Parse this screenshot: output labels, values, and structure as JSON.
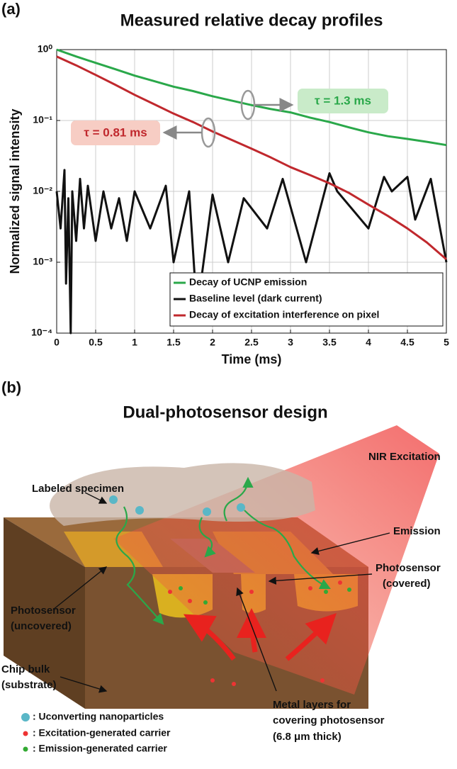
{
  "chart_data": {
    "type": "line",
    "panel_label": "(a)",
    "title": "Measured relative decay profiles",
    "x_label": "Time (ms)",
    "y_label": "Normalized signal intensity",
    "xlim": [
      0,
      5
    ],
    "xticks": [
      0,
      0.5,
      1,
      1.5,
      2,
      2.5,
      3,
      3.5,
      4,
      4.5,
      5
    ],
    "ylim": [
      0.0001,
      1
    ],
    "log_y": true,
    "yticks": [
      {
        "value": 0.0001,
        "label": "10⁻⁴"
      },
      {
        "value": 0.001,
        "label": "10⁻³"
      },
      {
        "value": 0.01,
        "label": "10⁻²"
      },
      {
        "value": 0.1,
        "label": "10⁻¹"
      },
      {
        "value": 1,
        "label": "10⁰"
      }
    ],
    "grid": true,
    "legend": "lower right",
    "x": [
      0,
      0.25,
      0.5,
      0.75,
      1,
      1.25,
      1.5,
      1.75,
      2,
      2.25,
      2.5,
      2.75,
      3,
      3.25,
      3.5,
      3.75,
      4,
      4.25,
      4.5,
      4.75,
      5
    ],
    "series": [
      {
        "name": "Decay of UCNP emission",
        "color": "#2aa84a",
        "values": [
          1.0,
          0.8,
          0.65,
          0.53,
          0.43,
          0.36,
          0.3,
          0.26,
          0.22,
          0.19,
          0.165,
          0.145,
          0.13,
          0.11,
          0.095,
          0.08,
          0.068,
          0.06,
          0.055,
          0.05,
          0.045
        ]
      },
      {
        "name": "Baseline level (dark current)",
        "color": "#111111",
        "x": [
          0,
          0.05,
          0.1,
          0.12,
          0.15,
          0.18,
          0.2,
          0.25,
          0.3,
          0.35,
          0.4,
          0.5,
          0.6,
          0.7,
          0.8,
          0.9,
          1,
          1.2,
          1.4,
          1.5,
          1.7,
          1.8,
          2,
          2.2,
          2.4,
          2.7,
          2.9,
          3.2,
          3.5,
          3.6,
          4,
          4.2,
          4.3,
          4.5,
          4.6,
          4.8,
          5
        ],
        "values": [
          0.01,
          0.003,
          0.02,
          0.0005,
          0.008,
          0.0001,
          0.01,
          0.002,
          0.015,
          0.003,
          0.012,
          0.002,
          0.01,
          0.003,
          0.008,
          0.002,
          0.01,
          0.003,
          0.012,
          0.001,
          0.01,
          0.0002,
          0.009,
          0.001,
          0.008,
          0.003,
          0.015,
          0.001,
          0.018,
          0.01,
          0.003,
          0.016,
          0.01,
          0.016,
          0.004,
          0.015,
          0.001
        ]
      },
      {
        "name": "Decay of excitation interference on pixel",
        "color": "#c0282d",
        "values": [
          0.8,
          0.6,
          0.44,
          0.32,
          0.23,
          0.17,
          0.125,
          0.095,
          0.07,
          0.053,
          0.04,
          0.03,
          0.022,
          0.017,
          0.013,
          0.0095,
          0.0065,
          0.0045,
          0.003,
          0.0019,
          0.0011
        ]
      }
    ],
    "annotations": [
      "τ = 1.3 ms",
      "τ = 0.81 ms"
    ]
  },
  "diagram": {
    "panel_label": "(b)",
    "title": "Dual-photosensor design",
    "labels": [
      "NIR Excitation",
      "Labeled specimen",
      "Emission",
      "Photosensor",
      "(covered)",
      "Photosensor",
      "(uncovered)",
      "Chip bulk",
      "(substrate)",
      "Metal layers for",
      "covering photosensor",
      "(6.8 μm thick)"
    ],
    "legend": [
      ": Uconverting nanoparticles",
      ": Excitation-generated carrier",
      ": Emission-generated carrier"
    ]
  }
}
